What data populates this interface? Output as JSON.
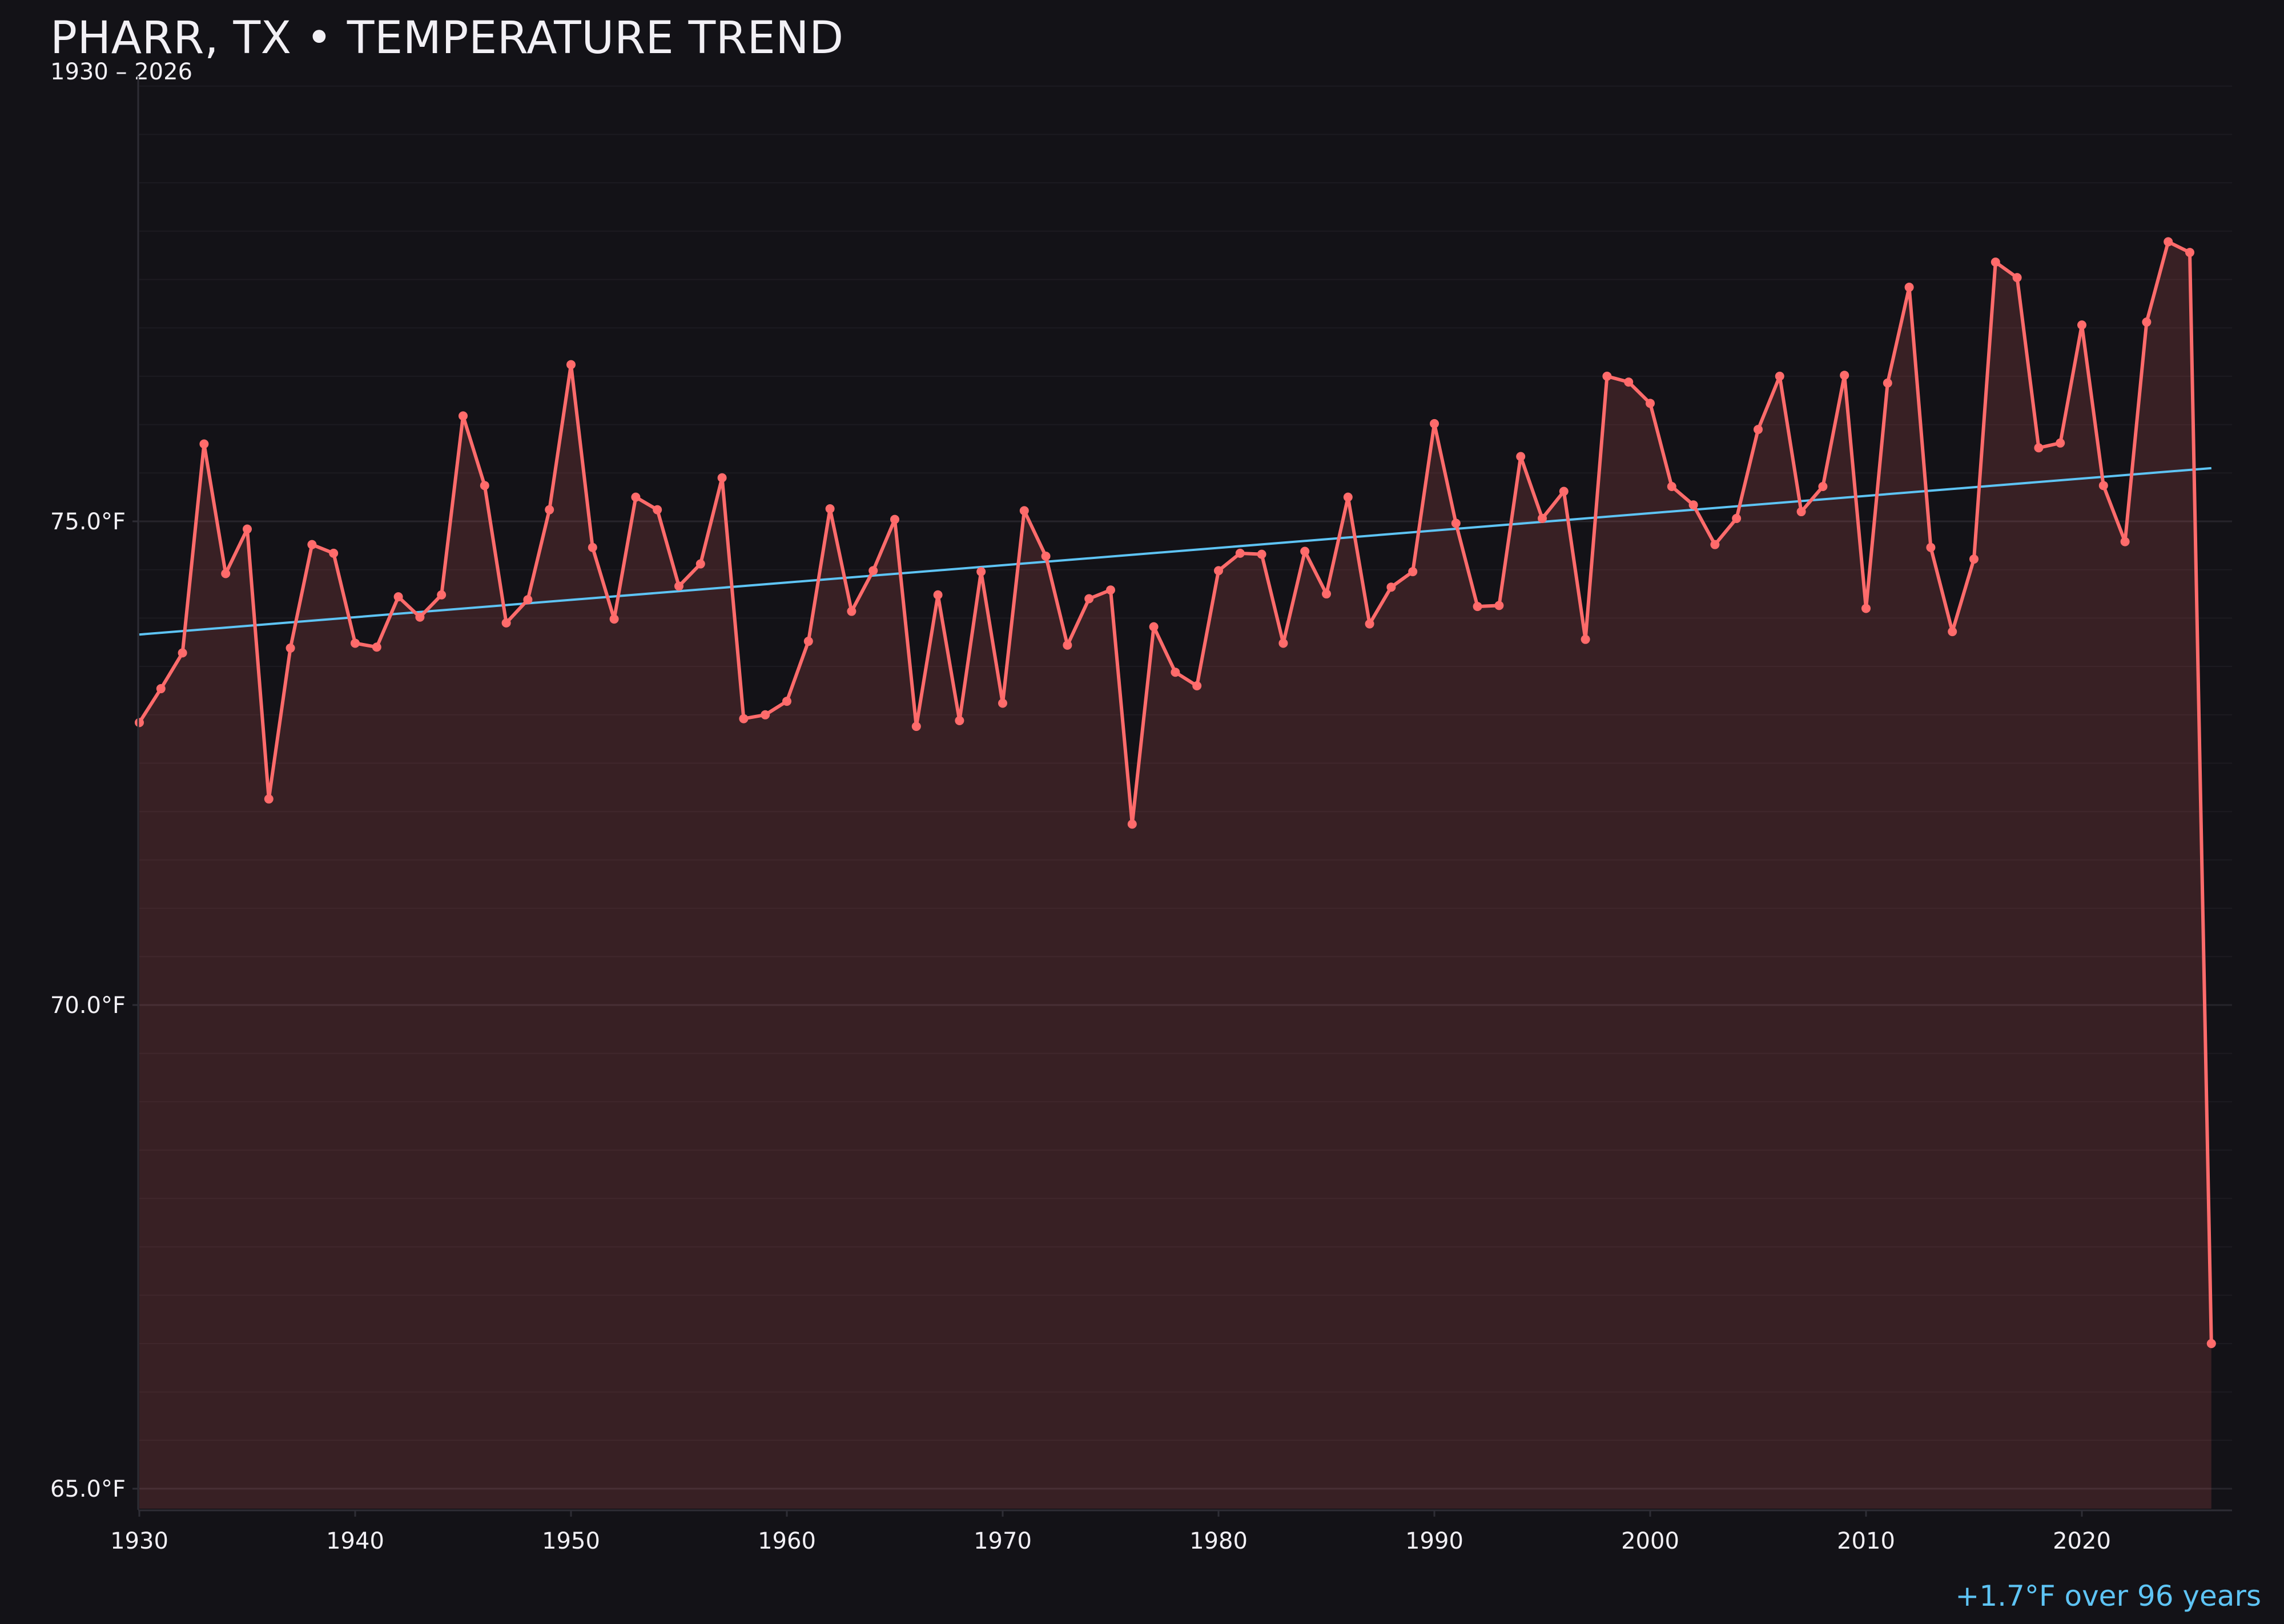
{
  "header": {
    "title": "PHARR, TX • TEMPERATURE TREND",
    "subtitle": "1930 – 2026"
  },
  "footer": {
    "trend_summary": "+1.7°F over 96 years"
  },
  "colors": {
    "background": "#131217",
    "series_line": "#ff6b6b",
    "series_fill": "#351f25",
    "trend_line": "#5ec4f5",
    "grid_major": "#26242b",
    "grid_minor": "#1c1b21",
    "axis": "#2e2d35",
    "text": "#f2f0f5"
  },
  "chart_data": {
    "type": "line",
    "title": "PHARR, TX • TEMPERATURE TREND",
    "subtitle": "1930 – 2026",
    "xlabel": "",
    "ylabel": "",
    "xlim": [
      1930,
      2027
    ],
    "ylim": [
      64.8,
      79.6
    ],
    "grid": true,
    "legend": null,
    "x_ticks": [
      1930,
      1940,
      1950,
      1960,
      1970,
      1980,
      1990,
      2000,
      2010,
      2020
    ],
    "x_tick_labels": [
      "1930",
      "1940",
      "1950",
      "1960",
      "1970",
      "1980",
      "1990",
      "2000",
      "2010",
      "2020"
    ],
    "y_ticks": [
      65.0,
      70.0,
      75.0
    ],
    "y_tick_labels": [
      "65.0°F",
      "70.0°F",
      "75.0°F"
    ],
    "series": [
      {
        "name": "Annual mean temperature (°F)",
        "style": "line+markers, area fill",
        "x": [
          1930,
          1931,
          1932,
          1933,
          1934,
          1935,
          1936,
          1937,
          1938,
          1939,
          1940,
          1941,
          1942,
          1943,
          1944,
          1945,
          1946,
          1947,
          1948,
          1949,
          1950,
          1951,
          1952,
          1953,
          1954,
          1955,
          1956,
          1957,
          1958,
          1959,
          1960,
          1961,
          1962,
          1963,
          1964,
          1965,
          1966,
          1967,
          1968,
          1969,
          1970,
          1971,
          1972,
          1973,
          1974,
          1975,
          1976,
          1977,
          1978,
          1979,
          1980,
          1981,
          1982,
          1983,
          1984,
          1985,
          1986,
          1987,
          1988,
          1989,
          1990,
          1991,
          1992,
          1993,
          1994,
          1995,
          1996,
          1997,
          1998,
          1999,
          2000,
          2001,
          2002,
          2003,
          2004,
          2005,
          2006,
          2007,
          2008,
          2009,
          2010,
          2011,
          2012,
          2013,
          2014,
          2015,
          2016,
          2017,
          2018,
          2019,
          2020,
          2021,
          2022,
          2023,
          2024,
          2025,
          2026
        ],
        "values": [
          72.92,
          73.27,
          73.64,
          75.8,
          74.46,
          74.92,
          72.13,
          73.69,
          74.76,
          74.67,
          73.74,
          73.7,
          74.22,
          74.01,
          74.24,
          76.09,
          75.37,
          73.95,
          74.19,
          75.12,
          76.62,
          74.73,
          73.99,
          75.25,
          75.12,
          74.33,
          74.56,
          75.45,
          72.96,
          73.0,
          73.14,
          73.76,
          75.13,
          74.07,
          74.49,
          75.02,
          72.88,
          74.24,
          72.94,
          74.48,
          73.12,
          75.11,
          74.64,
          73.72,
          74.2,
          74.29,
          71.87,
          73.91,
          73.44,
          73.3,
          74.49,
          74.67,
          74.66,
          73.74,
          74.69,
          74.25,
          75.25,
          73.94,
          74.32,
          74.48,
          76.01,
          74.98,
          74.12,
          74.13,
          75.67,
          75.03,
          75.31,
          73.78,
          76.5,
          76.44,
          76.22,
          75.36,
          75.17,
          74.76,
          75.03,
          75.95,
          76.5,
          75.1,
          75.36,
          76.51,
          74.1,
          76.43,
          77.42,
          74.73,
          73.86,
          74.61,
          77.68,
          77.52,
          75.76,
          75.81,
          77.03,
          75.37,
          74.79,
          77.06,
          77.89,
          77.78,
          66.5
        ]
      },
      {
        "name": "Linear trend",
        "style": "line",
        "x": [
          1930,
          2026
        ],
        "values": [
          73.83,
          75.55
        ]
      }
    ],
    "annotations": [
      "+1.7°F over 96 years"
    ]
  }
}
